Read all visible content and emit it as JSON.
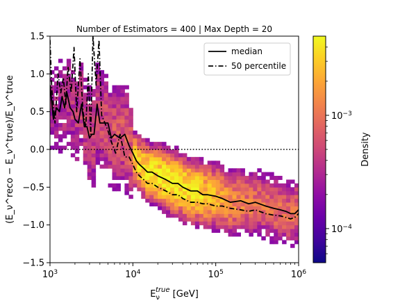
{
  "chart_data": {
    "type": "heatmap",
    "title": "Number of Estimators = 400 | Max Depth = 20",
    "xlabel": {
      "base": "E",
      "sub": "ν",
      "sup": "true",
      "suffix": " [GeV]"
    },
    "ylabel": "(E_ν^reco − E_ν^true)/E_ν^true",
    "x_scale": "log",
    "xlim": [
      1000,
      1000000
    ],
    "ylim": [
      -1.5,
      1.5
    ],
    "x_ticks": [
      {
        "value": 1000,
        "base": "10",
        "exp": "3"
      },
      {
        "value": 10000,
        "base": "10",
        "exp": "4"
      },
      {
        "value": 100000,
        "base": "10",
        "exp": "5"
      },
      {
        "value": 1000000,
        "base": "10",
        "exp": "6"
      }
    ],
    "y_ticks": [
      {
        "value": -1.5,
        "label": "−1.5"
      },
      {
        "value": -1.0,
        "label": "−1.0"
      },
      {
        "value": -0.5,
        "label": "−0.5"
      },
      {
        "value": 0.0,
        "label": "0.0"
      },
      {
        "value": 0.5,
        "label": "0.5"
      },
      {
        "value": 1.0,
        "label": "1.0"
      },
      {
        "value": 1.5,
        "label": "1.5"
      }
    ],
    "reference_line": {
      "y": 0.0,
      "style": "dotted"
    },
    "colorbar": {
      "label": "Density",
      "scale": "log",
      "colormap": "plasma",
      "range": [
        5e-05,
        0.005
      ],
      "ticks": [
        {
          "value": 0.0001,
          "base": "10",
          "exp": "−4"
        },
        {
          "value": 0.001,
          "base": "10",
          "exp": "−3"
        }
      ]
    },
    "legend": {
      "placement": "top-right",
      "entries": [
        {
          "name": "median",
          "style": "solid"
        },
        {
          "name": "50 percentile",
          "style": "dashdot"
        }
      ]
    },
    "series": [
      {
        "name": "median",
        "style": "solid",
        "x": [
          1000,
          1100,
          1200,
          1300,
          1400,
          1500,
          1600,
          1750,
          1900,
          2000,
          2200,
          2400,
          2600,
          2800,
          3000,
          3200,
          3400,
          3700,
          4000,
          4500,
          5000,
          5500,
          6000,
          7000,
          8000,
          9000,
          10000,
          11000,
          12000,
          13500,
          15000,
          17000,
          20000,
          25000,
          30000,
          35000,
          40000,
          50000,
          60000,
          70000,
          80000,
          100000,
          120000,
          150000,
          200000,
          250000,
          300000,
          400000,
          500000,
          600000,
          700000,
          800000,
          900000,
          1000000
        ],
        "values": [
          0.85,
          0.4,
          0.55,
          0.5,
          0.7,
          0.55,
          0.75,
          0.55,
          0.5,
          0.4,
          0.35,
          0.6,
          0.3,
          0.3,
          0.15,
          0.2,
          0.2,
          0.6,
          0.35,
          0.35,
          0.35,
          0.15,
          0.2,
          0.15,
          0.2,
          0.05,
          -0.05,
          -0.15,
          -0.2,
          -0.25,
          -0.3,
          -0.3,
          -0.35,
          -0.4,
          -0.45,
          -0.45,
          -0.5,
          -0.55,
          -0.55,
          -0.6,
          -0.6,
          -0.62,
          -0.65,
          -0.7,
          -0.68,
          -0.72,
          -0.7,
          -0.75,
          -0.78,
          -0.8,
          -0.82,
          -0.85,
          -0.85,
          -0.8
        ]
      },
      {
        "name": "50 percentile",
        "style": "dashdot",
        "x": [
          1000,
          1050,
          1150,
          1250,
          1350,
          1450,
          1550,
          1650,
          1800,
          1950,
          2100,
          2300,
          2500,
          2700,
          2900,
          3100,
          3300,
          3600,
          3900,
          4200,
          4600,
          5000,
          5500,
          6200,
          7000,
          8000,
          9000,
          10000,
          11000,
          12000,
          13500,
          15000,
          17000,
          20000,
          25000,
          30000,
          35000,
          40000,
          50000,
          60000,
          70000,
          80000,
          100000,
          120000,
          150000,
          200000,
          250000,
          300000,
          400000,
          500000,
          600000,
          700000,
          800000,
          900000,
          1000000
        ],
        "values": [
          1.45,
          0.8,
          0.35,
          1.0,
          0.75,
          0.95,
          0.6,
          1.1,
          0.75,
          1.35,
          0.5,
          1.2,
          0.5,
          0.3,
          1.0,
          0.2,
          1.5,
          0.85,
          1.45,
          0.45,
          0.35,
          0.25,
          0.1,
          -0.05,
          0.2,
          -0.1,
          -0.1,
          -0.2,
          -0.3,
          -0.35,
          -0.4,
          -0.45,
          -0.45,
          -0.5,
          -0.55,
          -0.6,
          -0.6,
          -0.65,
          -0.7,
          -0.7,
          -0.72,
          -0.72,
          -0.75,
          -0.75,
          -0.78,
          -0.8,
          -0.82,
          -0.8,
          -0.85,
          -0.87,
          -0.88,
          -0.9,
          -0.92,
          -0.9,
          -0.85
        ]
      }
    ]
  }
}
